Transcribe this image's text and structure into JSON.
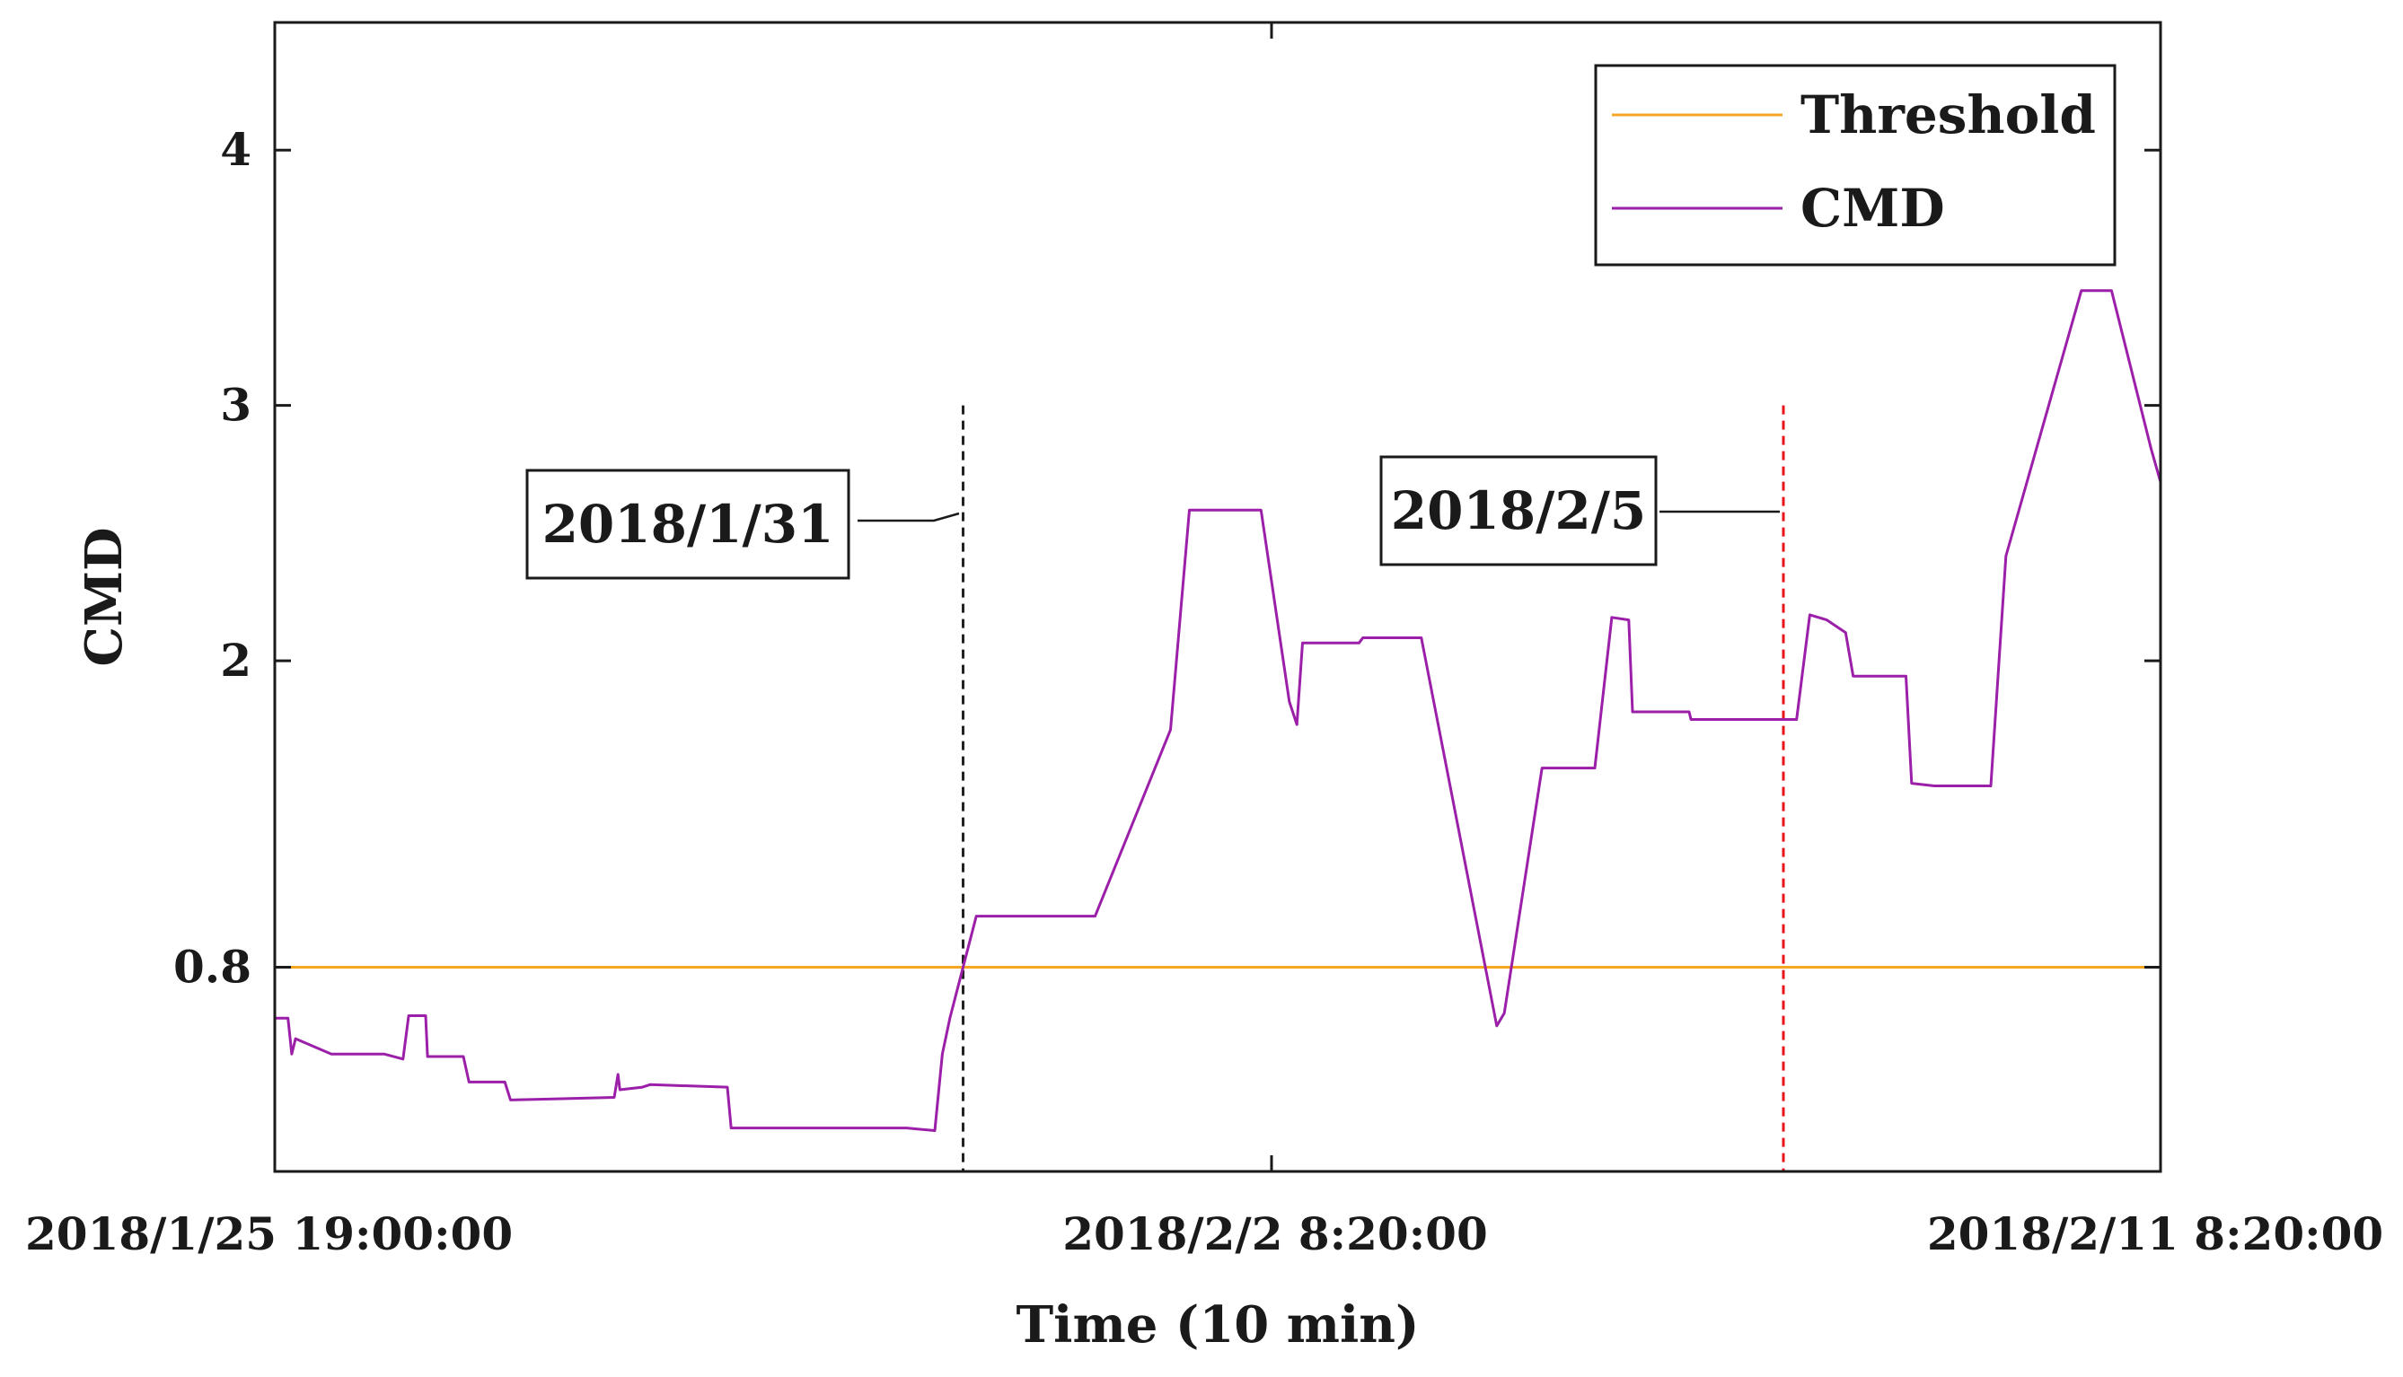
{
  "chart_data": {
    "type": "line",
    "xlabel": "Time (10 min)",
    "ylabel": "CMD",
    "x_ticks": [
      "2018/1/25 19:00:00",
      "2018/2/2 8:20:00",
      "2018/2/11 8:20:00"
    ],
    "y_ticks": [
      0.8,
      2,
      3,
      4
    ],
    "ylim": [
      0,
      4.5
    ],
    "xlim": [
      0,
      1
    ],
    "grid": false,
    "legend_position": "top-right",
    "colors": {
      "threshold": "#f5a623",
      "cmd": "#9b1fa8",
      "event1": "#222222",
      "event2": "#e8141c"
    },
    "legend": [
      {
        "key": "threshold",
        "label": "Threshold"
      },
      {
        "key": "cmd",
        "label": "CMD"
      }
    ],
    "threshold": {
      "name": "Threshold",
      "value": 0.8
    },
    "events": [
      {
        "label": "2018/1/31",
        "x": 0.365,
        "style": "dashed",
        "color_key": "event1"
      },
      {
        "label": "2018/2/5",
        "x": 0.8,
        "style": "dashed",
        "color_key": "event2"
      }
    ],
    "series": [
      {
        "name": "CMD",
        "color_key": "cmd",
        "points": [
          [
            0.0,
            0.6
          ],
          [
            0.007,
            0.6
          ],
          [
            0.009,
            0.46
          ],
          [
            0.011,
            0.52
          ],
          [
            0.03,
            0.46
          ],
          [
            0.058,
            0.46
          ],
          [
            0.068,
            0.44
          ],
          [
            0.071,
            0.61
          ],
          [
            0.08,
            0.61
          ],
          [
            0.081,
            0.45
          ],
          [
            0.1,
            0.45
          ],
          [
            0.103,
            0.35
          ],
          [
            0.122,
            0.35
          ],
          [
            0.125,
            0.28
          ],
          [
            0.18,
            0.29
          ],
          [
            0.182,
            0.38
          ],
          [
            0.183,
            0.32
          ],
          [
            0.195,
            0.33
          ],
          [
            0.199,
            0.34
          ],
          [
            0.24,
            0.33
          ],
          [
            0.242,
            0.17
          ],
          [
            0.3,
            0.17
          ],
          [
            0.335,
            0.17
          ],
          [
            0.35,
            0.16
          ],
          [
            0.354,
            0.46
          ],
          [
            0.358,
            0.6
          ],
          [
            0.372,
            1.0
          ],
          [
            0.435,
            1.0
          ],
          [
            0.475,
            1.73
          ],
          [
            0.485,
            2.59
          ],
          [
            0.523,
            2.59
          ],
          [
            0.538,
            1.84
          ],
          [
            0.542,
            1.75
          ],
          [
            0.545,
            2.07
          ],
          [
            0.575,
            2.07
          ],
          [
            0.577,
            2.09
          ],
          [
            0.608,
            2.09
          ],
          [
            0.648,
            0.57
          ],
          [
            0.652,
            0.62
          ],
          [
            0.672,
            1.58
          ],
          [
            0.7,
            1.58
          ],
          [
            0.709,
            2.17
          ],
          [
            0.718,
            2.16
          ],
          [
            0.72,
            1.8
          ],
          [
            0.75,
            1.8
          ],
          [
            0.751,
            1.77
          ],
          [
            0.8,
            1.77
          ],
          [
            0.807,
            1.77
          ],
          [
            0.814,
            2.18
          ],
          [
            0.823,
            2.16
          ],
          [
            0.833,
            2.11
          ],
          [
            0.837,
            1.94
          ],
          [
            0.865,
            1.94
          ],
          [
            0.868,
            1.52
          ],
          [
            0.88,
            1.51
          ],
          [
            0.888,
            1.51
          ],
          [
            0.91,
            1.51
          ],
          [
            0.918,
            2.41
          ],
          [
            0.958,
            3.45
          ],
          [
            0.974,
            3.45
          ],
          [
            0.995,
            2.83
          ],
          [
            1.0,
            2.7
          ]
        ]
      }
    ]
  }
}
